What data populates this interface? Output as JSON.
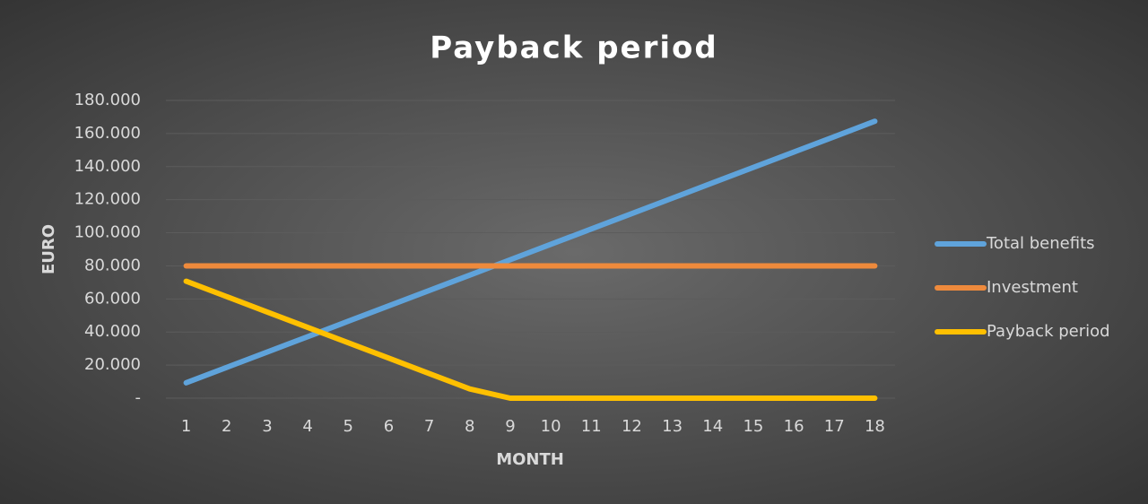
{
  "chart_data": {
    "type": "line",
    "title": "Payback period",
    "x_label": "MONTH",
    "y_label": "EURO",
    "categories": [
      "1",
      "2",
      "3",
      "4",
      "5",
      "6",
      "7",
      "8",
      "9",
      "10",
      "11",
      "12",
      "13",
      "14",
      "15",
      "16",
      "17",
      "18"
    ],
    "series": [
      {
        "name": "Total benefits",
        "color": "#5fa3db",
        "values": [
          9300,
          18600,
          27900,
          37200,
          46500,
          55800,
          65100,
          74400,
          83700,
          93000,
          102300,
          111600,
          120900,
          130200,
          139500,
          148800,
          158100,
          167400
        ]
      },
      {
        "name": "Investment",
        "color": "#ee8a3c",
        "values": [
          80000,
          80000,
          80000,
          80000,
          80000,
          80000,
          80000,
          80000,
          80000,
          80000,
          80000,
          80000,
          80000,
          80000,
          80000,
          80000,
          80000,
          80000
        ]
      },
      {
        "name": "Payback period",
        "color": "#ffc000",
        "values": [
          70700,
          61400,
          52100,
          42800,
          33500,
          24200,
          14900,
          5600,
          0,
          0,
          0,
          0,
          0,
          0,
          0,
          0,
          0,
          0
        ]
      }
    ],
    "ylim": [
      0,
      180000
    ],
    "yticks": [
      {
        "value": 0,
        "label": "-"
      },
      {
        "value": 20000,
        "label": "20.000"
      },
      {
        "value": 40000,
        "label": "40.000"
      },
      {
        "value": 60000,
        "label": "60.000"
      },
      {
        "value": 80000,
        "label": "80.000"
      },
      {
        "value": 100000,
        "label": "100.000"
      },
      {
        "value": 120000,
        "label": "120.000"
      },
      {
        "value": 140000,
        "label": "140.000"
      },
      {
        "value": 160000,
        "label": "160.000"
      },
      {
        "value": 180000,
        "label": "180.000"
      }
    ],
    "grid": true,
    "legend": "right"
  }
}
